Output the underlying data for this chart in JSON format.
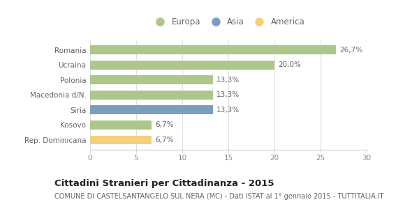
{
  "categories": [
    "Romania",
    "Ucraina",
    "Polonia",
    "Macedonia d/N.",
    "Siria",
    "Kosovo",
    "Rep. Dominicana"
  ],
  "values": [
    26.7,
    20.0,
    13.3,
    13.3,
    13.3,
    6.7,
    6.7
  ],
  "labels": [
    "26,7%",
    "20,0%",
    "13,3%",
    "13,3%",
    "13,3%",
    "6,7%",
    "6,7%"
  ],
  "bar_colors": [
    "#adc68a",
    "#adc68a",
    "#adc68a",
    "#adc68a",
    "#7b9ec0",
    "#adc68a",
    "#f5d07a"
  ],
  "legend_items": [
    {
      "label": "Europa",
      "color": "#adc68a"
    },
    {
      "label": "Asia",
      "color": "#7b9ec0"
    },
    {
      "label": "America",
      "color": "#f5d07a"
    }
  ],
  "xlim": [
    0,
    30
  ],
  "xticks": [
    0,
    5,
    10,
    15,
    20,
    25,
    30
  ],
  "title": "Cittadini Stranieri per Cittadinanza - 2015",
  "subtitle": "COMUNE DI CASTELSANTANGELO SUL NERA (MC) - Dati ISTAT al 1° gennaio 2015 - TUTTITALIA.IT",
  "background_color": "#ffffff",
  "bar_height": 0.6,
  "title_fontsize": 9.5,
  "subtitle_fontsize": 7.0,
  "label_fontsize": 7.5,
  "tick_fontsize": 7.5,
  "legend_fontsize": 8.5
}
